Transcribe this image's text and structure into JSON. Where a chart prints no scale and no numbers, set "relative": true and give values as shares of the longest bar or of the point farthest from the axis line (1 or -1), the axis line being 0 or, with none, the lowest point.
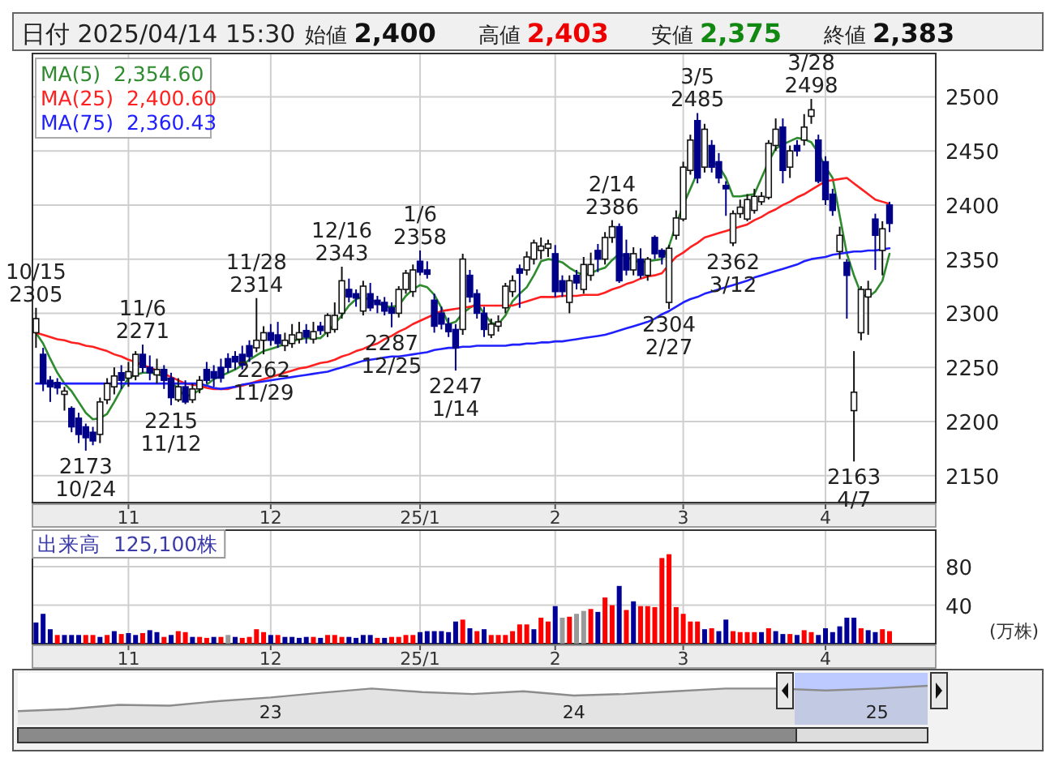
{
  "chart_data": [
    {
      "type": "candlestick",
      "title": "日付 2025/04/14 15:30",
      "annotations": [
        "始値 2,400",
        "高値 2,403",
        "安値 2,375",
        "終値 2,383",
        {
          "text": "10/15\n2305",
          "y": 2305
        },
        {
          "text": "2173\n10/24",
          "y": 2173
        },
        {
          "text": "11/6\n2271",
          "y": 2271
        },
        {
          "text": "2215\n11/12",
          "y": 2215
        },
        {
          "text": "11/28\n2314",
          "y": 2314
        },
        {
          "text": "2262\n11/29",
          "y": 2262
        },
        {
          "text": "12/16\n2343",
          "y": 2343
        },
        {
          "text": "2287\n12/25",
          "y": 2287
        },
        {
          "text": "1/6\n2358",
          "y": 2358
        },
        {
          "text": "2247\n1/14",
          "y": 2247
        },
        {
          "text": "2/14\n2386",
          "y": 2386
        },
        {
          "text": "2304\n2/27",
          "y": 2304
        },
        {
          "text": "3/5\n2485",
          "y": 2485
        },
        {
          "text": "2362\n3/12",
          "y": 2362
        },
        {
          "text": "3/28\n2498",
          "y": 2498
        },
        {
          "text": "2163\n4/7",
          "y": 2163
        }
      ],
      "categories": [
        null,
        null,
        null,
        null,
        null,
        null,
        null,
        null,
        null,
        null,
        null,
        null,
        null,
        "11",
        null,
        null,
        null,
        null,
        null,
        null,
        null,
        null,
        null,
        null,
        null,
        null,
        null,
        null,
        null,
        null,
        null,
        null,
        null,
        "12",
        null,
        null,
        null,
        null,
        null,
        null,
        null,
        null,
        null,
        null,
        null,
        null,
        null,
        null,
        null,
        null,
        null,
        null,
        null,
        null,
        "25/1",
        null,
        null,
        null,
        null,
        null,
        null,
        null,
        null,
        null,
        null,
        null,
        null,
        null,
        null,
        null,
        null,
        null,
        null,
        "2",
        null,
        null,
        null,
        null,
        null,
        null,
        null,
        null,
        null,
        null,
        null,
        null,
        null,
        null,
        null,
        null,
        null,
        "3",
        null,
        null,
        null,
        null,
        null,
        null,
        null,
        null,
        null,
        null,
        null,
        null,
        null,
        null,
        null,
        null,
        null,
        null,
        null,
        "4",
        null,
        null,
        null,
        null,
        null,
        null,
        null,
        null,
        null
      ],
      "ohlc": [
        [
          2282,
          2305,
          2268,
          2295
        ],
        [
          2262,
          2268,
          2228,
          2235
        ],
        [
          2238,
          2242,
          2218,
          2232
        ],
        [
          2236,
          2240,
          2225,
          2231
        ],
        [
          2225,
          2232,
          2210,
          2228
        ],
        [
          2212,
          2214,
          2190,
          2195
        ],
        [
          2203,
          2208,
          2180,
          2188
        ],
        [
          2195,
          2198,
          2173,
          2185
        ],
        [
          2190,
          2195,
          2178,
          2182
        ],
        [
          2188,
          2222,
          2180,
          2218
        ],
        [
          2220,
          2240,
          2216,
          2235
        ],
        [
          2232,
          2250,
          2225,
          2242
        ],
        [
          2245,
          2252,
          2230,
          2238
        ],
        [
          2240,
          2255,
          2232,
          2246
        ],
        [
          2242,
          2265,
          2238,
          2262
        ],
        [
          2262,
          2271,
          2245,
          2250
        ],
        [
          2250,
          2261,
          2238,
          2245
        ],
        [
          2243,
          2258,
          2235,
          2248
        ],
        [
          2248,
          2252,
          2230,
          2238
        ],
        [
          2240,
          2245,
          2215,
          2222
        ],
        [
          2220,
          2240,
          2218,
          2232
        ],
        [
          2232,
          2238,
          2216,
          2218
        ],
        [
          2220,
          2235,
          2217,
          2230
        ],
        [
          2230,
          2242,
          2226,
          2238
        ],
        [
          2248,
          2255,
          2235,
          2238
        ],
        [
          2246,
          2252,
          2232,
          2240
        ],
        [
          2250,
          2258,
          2236,
          2240
        ],
        [
          2258,
          2263,
          2245,
          2250
        ],
        [
          2260,
          2265,
          2248,
          2255
        ],
        [
          2262,
          2270,
          2248,
          2252
        ],
        [
          2270,
          2275,
          2255,
          2260
        ],
        [
          2268,
          2314,
          2264,
          2275
        ],
        [
          2275,
          2288,
          2262,
          2282
        ],
        [
          2282,
          2290,
          2270,
          2275
        ],
        [
          2280,
          2292,
          2268,
          2272
        ],
        [
          2270,
          2282,
          2265,
          2275
        ],
        [
          2272,
          2290,
          2268,
          2280
        ],
        [
          2276,
          2292,
          2272,
          2282
        ],
        [
          2284,
          2290,
          2272,
          2278
        ],
        [
          2276,
          2292,
          2272,
          2283
        ],
        [
          2288,
          2292,
          2280,
          2284
        ],
        [
          2282,
          2300,
          2278,
          2298
        ],
        [
          2285,
          2310,
          2282,
          2298
        ],
        [
          2300,
          2343,
          2295,
          2330
        ],
        [
          2322,
          2332,
          2310,
          2315
        ],
        [
          2318,
          2322,
          2306,
          2314
        ],
        [
          2302,
          2330,
          2298,
          2325
        ],
        [
          2318,
          2328,
          2302,
          2305
        ],
        [
          2312,
          2316,
          2300,
          2308
        ],
        [
          2310,
          2315,
          2298,
          2302
        ],
        [
          2305,
          2310,
          2287,
          2300
        ],
        [
          2300,
          2325,
          2296,
          2322
        ],
        [
          2322,
          2340,
          2318,
          2337
        ],
        [
          2320,
          2345,
          2315,
          2340
        ],
        [
          2348,
          2358,
          2335,
          2338
        ],
        [
          2340,
          2348,
          2332,
          2336
        ],
        [
          2312,
          2318,
          2282,
          2288
        ],
        [
          2300,
          2306,
          2285,
          2290
        ],
        [
          2290,
          2296,
          2278,
          2283
        ],
        [
          2285,
          2290,
          2247,
          2268
        ],
        [
          2285,
          2355,
          2280,
          2350
        ],
        [
          2335,
          2340,
          2310,
          2315
        ],
        [
          2318,
          2322,
          2295,
          2300
        ],
        [
          2300,
          2306,
          2278,
          2285
        ],
        [
          2280,
          2295,
          2277,
          2290
        ],
        [
          2288,
          2298,
          2283,
          2292
        ],
        [
          2305,
          2328,
          2300,
          2325
        ],
        [
          2320,
          2335,
          2315,
          2330
        ],
        [
          2341,
          2345,
          2305,
          2337
        ],
        [
          2340,
          2357,
          2335,
          2352
        ],
        [
          2350,
          2368,
          2345,
          2365
        ],
        [
          2358,
          2370,
          2350,
          2362
        ],
        [
          2360,
          2368,
          2352,
          2364
        ],
        [
          2355,
          2363,
          2315,
          2320
        ],
        [
          2330,
          2335,
          2315,
          2320
        ],
        [
          2310,
          2335,
          2300,
          2330
        ],
        [
          2335,
          2340,
          2322,
          2328
        ],
        [
          2322,
          2352,
          2318,
          2345
        ],
        [
          2335,
          2356,
          2330,
          2345
        ],
        [
          2358,
          2364,
          2338,
          2350
        ],
        [
          2350,
          2375,
          2345,
          2370
        ],
        [
          2370,
          2386,
          2365,
          2380
        ],
        [
          2380,
          2383,
          2328,
          2330
        ],
        [
          2355,
          2368,
          2335,
          2340
        ],
        [
          2340,
          2361,
          2335,
          2355
        ],
        [
          2350,
          2360,
          2332,
          2335
        ],
        [
          2335,
          2352,
          2330,
          2350
        ],
        [
          2370,
          2372,
          2350,
          2355
        ],
        [
          2358,
          2360,
          2345,
          2352
        ],
        [
          2310,
          2363,
          2304,
          2360
        ],
        [
          2372,
          2395,
          2368,
          2388
        ],
        [
          2387,
          2440,
          2385,
          2435
        ],
        [
          2432,
          2465,
          2428,
          2460
        ],
        [
          2478,
          2485,
          2420,
          2425
        ],
        [
          2435,
          2475,
          2430,
          2470
        ],
        [
          2455,
          2460,
          2430,
          2435
        ],
        [
          2440,
          2448,
          2420,
          2425
        ],
        [
          2418,
          2422,
          2390,
          2415
        ],
        [
          2365,
          2395,
          2362,
          2392
        ],
        [
          2392,
          2405,
          2388,
          2398
        ],
        [
          2387,
          2410,
          2385,
          2405
        ],
        [
          2395,
          2415,
          2392,
          2408
        ],
        [
          2403,
          2412,
          2400,
          2408
        ],
        [
          2407,
          2460,
          2405,
          2457
        ],
        [
          2455,
          2480,
          2450,
          2470
        ],
        [
          2472,
          2480,
          2420,
          2432
        ],
        [
          2435,
          2455,
          2425,
          2450
        ],
        [
          2455,
          2460,
          2445,
          2450
        ],
        [
          2460,
          2484,
          2455,
          2472
        ],
        [
          2482,
          2498,
          2475,
          2488
        ],
        [
          2460,
          2465,
          2420,
          2422
        ],
        [
          2440,
          2445,
          2400,
          2405
        ],
        [
          2410,
          2415,
          2390,
          2395
        ],
        [
          2357,
          2380,
          2350,
          2372
        ],
        [
          2347,
          2350,
          2295,
          2335
        ],
        [
          2210,
          2265,
          2163,
          2227
        ],
        [
          2282,
          2325,
          2275,
          2322
        ],
        [
          2315,
          2330,
          2280,
          2322
        ],
        [
          2387,
          2392,
          2340,
          2372
        ],
        [
          2358,
          2385,
          2335,
          2378
        ],
        [
          2400,
          2403,
          2375,
          2383
        ]
      ],
      "series": [
        {
          "type": "line",
          "name": "MA(5)  2,354.60",
          "color": "#2e8b2e",
          "values": [
            2282,
            2272,
            2258,
            2245,
            2235,
            2228,
            2218,
            2208,
            2202,
            2203,
            2207,
            2218,
            2230,
            2240,
            2243,
            2245,
            2245,
            2244,
            2241,
            2237,
            2230,
            2223,
            2225,
            2229,
            2234,
            2239,
            2242,
            2245,
            2248,
            2252,
            2257,
            2261,
            2265,
            2267,
            2269,
            2272,
            2274,
            2276,
            2277,
            2277,
            2277,
            2283,
            2290,
            2298,
            2307,
            2313,
            2315,
            2312,
            2310,
            2306,
            2306,
            2307,
            2316,
            2322,
            2326,
            2324,
            2317,
            2305,
            2290,
            2292,
            2300,
            2305,
            2309,
            2300,
            2291,
            2290,
            2298,
            2311,
            2318,
            2324,
            2335,
            2348,
            2350,
            2349,
            2347,
            2342,
            2338,
            2335,
            2337,
            2340,
            2342,
            2349,
            2355,
            2352,
            2349,
            2347,
            2348,
            2349,
            2350,
            2362,
            2382,
            2400,
            2415,
            2430,
            null,
            2440,
            2436,
            2425,
            2408,
            2408,
            2409,
            2410,
            2425,
            2440,
            2452,
            2456,
            2459,
            2462,
            2461,
            2458,
            2448,
            2435,
            2425,
            2390,
            2355,
            2335,
            2318,
            2315,
            2320,
            2330,
            2355
          ]
        },
        {
          "type": "line",
          "name": "MA(25)  2,400.60",
          "color": "#ff2020",
          "values": [
            2282,
            2280,
            2278,
            2276,
            2275,
            2273,
            2272,
            2270,
            2269,
            2267,
            2265,
            2262,
            2260,
            2257,
            2255,
            2252,
            2250,
            2247,
            2244,
            2241,
            2238,
            2235,
            2234,
            2233,
            2231,
            2230,
            2230,
            2230,
            2232,
            2233,
            2235,
            2237,
            2239,
            2241,
            2243,
            2245,
            2247,
            2249,
            2250,
            2252,
            2254,
            2255,
            2257,
            2260,
            2262,
            2265,
            2267,
            2270,
            2272,
            2276,
            2279,
            2283,
            2286,
            2290,
            2293,
            2296,
            2299,
            2302,
            2303,
            2304,
            2305,
            2306,
            2307,
            2307,
            2307,
            2307,
            2307,
            2307,
            2309,
            2311,
            2313,
            2315,
            2315,
            2315,
            2316,
            2316,
            2316,
            2317,
            2317,
            2317,
            2319,
            2322,
            2324,
            2327,
            2329,
            2332,
            2334,
            2335,
            2337,
            2345,
            2352,
            2356,
            2361,
            2365,
            2370,
            2372,
            2374,
            2376,
            2378,
            2380,
            2382,
            2386,
            2389,
            2393,
            2396,
            2400,
            2403,
            2407,
            2410,
            2414,
            2418,
            2422,
            2423,
            2424,
            2425,
            2420,
            2415,
            2410,
            2405,
            2403,
            2401
          ]
        },
        {
          "type": "line",
          "name": "MA(75)  2,360.43",
          "color": "#2020ff",
          "values": [
            2235,
            2235,
            2235,
            2235,
            2235,
            2235,
            2235,
            2235,
            2235,
            2235,
            2235,
            2235,
            2235,
            2235,
            2235,
            2235,
            2235,
            2235,
            2235,
            2235,
            2235,
            2235,
            2235,
            2235,
            2233,
            2231,
            2230,
            2231,
            2232,
            2234,
            2235,
            2236,
            2237,
            2238,
            2239,
            2240,
            2241,
            2242,
            2243,
            2244,
            2245,
            2246,
            2248,
            2250,
            2252,
            2254,
            2256,
            2257,
            2258,
            2259,
            2260,
            2260,
            2261,
            2262,
            2263,
            2264,
            2266,
            2267,
            2268,
            2268,
            2269,
            2269,
            2270,
            2270,
            2270,
            2270,
            2270,
            2271,
            2271,
            2272,
            2272,
            2273,
            2273,
            2274,
            2274,
            2275,
            2276,
            2277,
            2278,
            2279,
            2280,
            2282,
            2284,
            2286,
            2288,
            2290,
            2292,
            2295,
            2299,
            2302,
            2306,
            2310,
            2313,
            2315,
            2318,
            2320,
            2322,
            2324,
            2326,
            2328,
            2330,
            2333,
            2335,
            2337,
            2339,
            2341,
            2343,
            2345,
            2348,
            2350,
            2351,
            2352,
            2354,
            2355,
            2356,
            2357,
            2357,
            2358,
            2358,
            2359,
            2360
          ]
        }
      ],
      "ylim": [
        2125,
        2540
      ],
      "yticks": [
        2150,
        2200,
        2250,
        2300,
        2350,
        2400,
        2450,
        2500
      ],
      "grid": true,
      "legend": "top left"
    },
    {
      "type": "bar",
      "title": "出来高  125,100株",
      "ylabel": "(万株)",
      "categories": [
        null,
        null,
        null,
        null,
        null,
        null,
        null,
        null,
        null,
        null,
        null,
        null,
        null,
        "11",
        null,
        null,
        null,
        null,
        null,
        null,
        null,
        null,
        null,
        null,
        null,
        null,
        null,
        null,
        null,
        null,
        null,
        null,
        null,
        "12",
        null,
        null,
        null,
        null,
        null,
        null,
        null,
        null,
        null,
        null,
        null,
        null,
        null,
        null,
        null,
        null,
        null,
        null,
        null,
        null,
        "25/1",
        null,
        null,
        null,
        null,
        null,
        null,
        null,
        null,
        null,
        null,
        null,
        null,
        null,
        null,
        null,
        null,
        null,
        null,
        "2",
        null,
        null,
        null,
        null,
        null,
        null,
        null,
        null,
        null,
        null,
        null,
        null,
        null,
        null,
        null,
        null,
        null,
        "3",
        null,
        null,
        null,
        null,
        null,
        null,
        null,
        null,
        null,
        null,
        null,
        null,
        null,
        null,
        null,
        null,
        null,
        null,
        null,
        "4",
        null,
        null,
        null,
        null,
        null,
        null,
        null,
        null,
        null
      ],
      "values": [
        22,
        31,
        15,
        9,
        9,
        9,
        9,
        9,
        9,
        7,
        9,
        13,
        10,
        11,
        9,
        11,
        14,
        12,
        7,
        9,
        13,
        12,
        7,
        7,
        6,
        7,
        7,
        9,
        7,
        6,
        7,
        15,
        12,
        9,
        9,
        7,
        7,
        6,
        7,
        7,
        6,
        9,
        9,
        7,
        7,
        6,
        9,
        9,
        6,
        6,
        7,
        7,
        9,
        9,
        12,
        13,
        13,
        13,
        12,
        23,
        25,
        16,
        13,
        15,
        9,
        9,
        9,
        13,
        20,
        20,
        15,
        27,
        23,
        39,
        27,
        28,
        31,
        34,
        36,
        33,
        48,
        40,
        60,
        35,
        44,
        39,
        39,
        38,
        89,
        93,
        38,
        31,
        23,
        23,
        15,
        16,
        13,
        25,
        13,
        12,
        12,
        12,
        12,
        16,
        13,
        10,
        10,
        9,
        14,
        12,
        9,
        16,
        12,
        18,
        27,
        27,
        16,
        14,
        12,
        15,
        13
      ],
      "colors": [
        "#000099",
        "#000099",
        "#000099",
        "#ff0000",
        "#000099",
        "#000099",
        "#000099",
        "#ff0000",
        "#ff0000",
        "#000099",
        "#ff0000",
        "#000099",
        "#ff0000",
        "#000099",
        "#000099",
        "#ff0000",
        "#000099",
        "#000099",
        "#ff0000",
        "#000099",
        "#ff0000",
        "#ff0000",
        "#000099",
        "#ff0000",
        "#ff0000",
        "#000099",
        "#ff0000",
        "#999999",
        "#000099",
        "#ff0000",
        "#ff0000",
        "#ff0000",
        "#ff0000",
        "#000099",
        "#ff0000",
        "#000099",
        "#000099",
        "#000099",
        "#000099",
        "#ff0000",
        "#000099",
        "#ff0000",
        "#ff0000",
        "#ff0000",
        "#000099",
        "#000099",
        "#000099",
        "#000099",
        "#ff0000",
        "#000099",
        "#ff0000",
        "#ff0000",
        "#ff0000",
        "#ff0000",
        "#000099",
        "#000099",
        "#000099",
        "#000099",
        "#000099",
        "#000099",
        "#ff0000",
        "#000099",
        "#ff0000",
        "#000099",
        "#ff0000",
        "#ff0000",
        "#ff0000",
        "#ff0000",
        "#ff0000",
        "#ff0000",
        "#000099",
        "#ff0000",
        "#ff0000",
        "#000099",
        "#999999",
        "#ff0000",
        "#999999",
        "#999999",
        "#ff0000",
        "#000099",
        "#ff0000",
        "#ff0000",
        "#000099",
        "#ff0000",
        "#000099",
        "#ff0000",
        "#ff0000",
        "#ff0000",
        "#ff0000",
        "#ff0000",
        "#ff0000",
        "#ff0000",
        "#ff0000",
        "#ff0000",
        "#000099",
        "#ff0000",
        "#000099",
        "#000099",
        "#ff0000",
        "#ff0000",
        "#ff0000",
        "#ff0000",
        "#000099",
        "#ff0000",
        "#000099",
        "#000099",
        "#ff0000",
        "#000099",
        "#ff0000",
        "#ff0000",
        "#000099",
        "#000099",
        "#000099",
        "#000099",
        "#000099",
        "#000099",
        "#ff0000",
        "#000099",
        "#000099",
        "#ff0000",
        "#ff0000"
      ],
      "ylim": [
        0,
        118
      ],
      "yticks": [
        40,
        80
      ],
      "grid": true
    },
    {
      "type": "area",
      "relative": true,
      "color": "#8c8c8c",
      "categories": [
        null,
        null,
        null,
        null,
        null,
        "23",
        null,
        null,
        null,
        null,
        null,
        "24",
        null,
        null,
        null,
        null,
        null,
        "25",
        null
      ],
      "values": [
        0.35,
        0.4,
        0.51,
        0.49,
        0.61,
        0.7,
        0.82,
        0.93,
        0.84,
        0.79,
        0.86,
        0.75,
        0.79,
        0.86,
        0.93,
        0.93,
        0.88,
        0.93,
        1.0
      ]
    }
  ]
}
